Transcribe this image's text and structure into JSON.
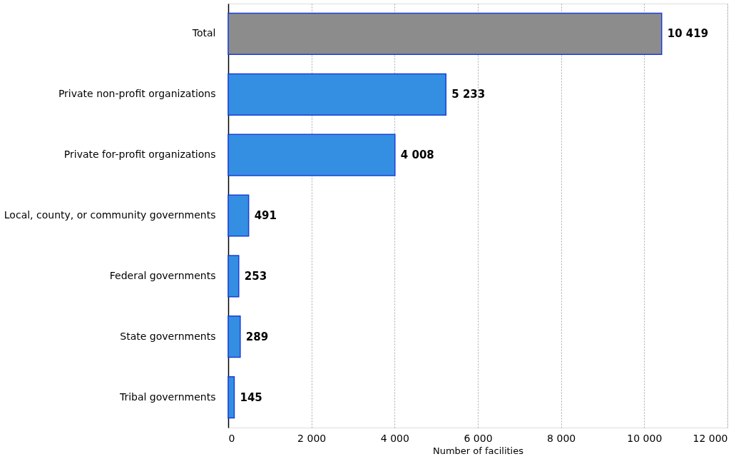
{
  "chart_data": {
    "type": "bar",
    "orientation": "horizontal",
    "xlabel": "Number of facilities",
    "categories": [
      "Total",
      "Private non-profit organizations",
      "Private for-profit organizations",
      "Local, county, or community governments",
      "Federal governments",
      "State governments",
      "Tribal governments"
    ],
    "values": [
      10419,
      5233,
      4008,
      491,
      253,
      289,
      145
    ],
    "colors": [
      "#8c8c8c",
      "#348fe2",
      "#348fe2",
      "#348fe2",
      "#348fe2",
      "#348fe2",
      "#348fe2"
    ],
    "value_labels": [
      "10 419",
      "5 233",
      "4 008",
      "491",
      "253",
      "289",
      "145"
    ],
    "xlim": [
      0,
      12000
    ],
    "xticks": [
      0,
      {
        "value": 2000,
        "label": "2 000"
      },
      {
        "value": 4000,
        "label": "4 000"
      },
      {
        "value": 6000,
        "label": "6 000"
      },
      {
        "value": 8000,
        "label": "8 000"
      },
      {
        "value": 10000,
        "label": "10 000"
      },
      {
        "value": 12000,
        "label": "12 000"
      }
    ],
    "grid": "x"
  }
}
